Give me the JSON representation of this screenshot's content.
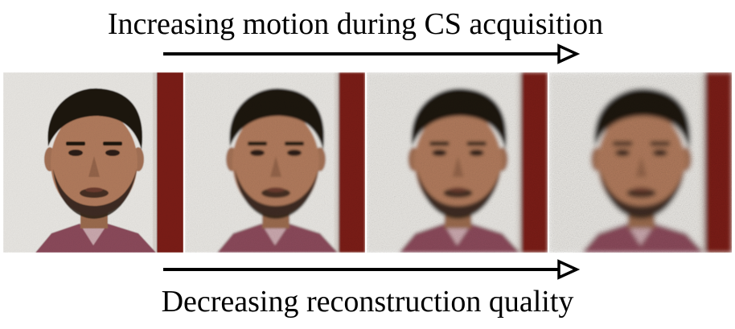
{
  "captions": {
    "top": "Increasing motion during CS acquisition",
    "bottom": "Decreasing reconstruction quality"
  },
  "frames": [
    {
      "index": 1,
      "blur": 0.6,
      "noise_opacity": 0.18
    },
    {
      "index": 2,
      "blur": 1.3,
      "noise_opacity": 0.26
    },
    {
      "index": 3,
      "blur": 2.0,
      "noise_opacity": 0.34
    },
    {
      "index": 4,
      "blur": 2.8,
      "noise_opacity": 0.42
    }
  ],
  "colors": {
    "wall": "#e8e6e2",
    "pillar": "#7a1f16",
    "skin": "#b07a5c",
    "hair": "#1a1410",
    "shirt": "#8a4a5a"
  }
}
